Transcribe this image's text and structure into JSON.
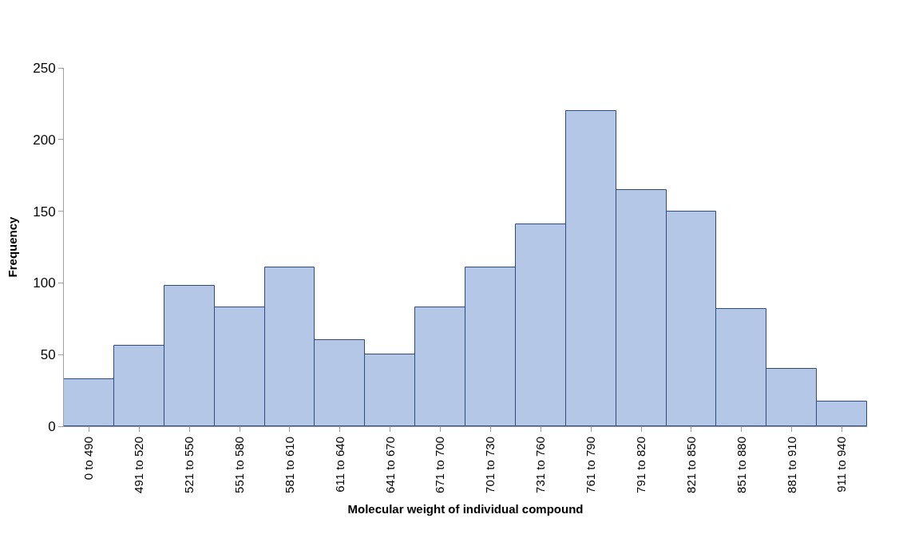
{
  "chart_data": {
    "type": "bar",
    "xlabel": "Molecular weight of individual compound",
    "ylabel": "Frequency",
    "categories": [
      "0 to 490",
      "491 to 520",
      "521 to 550",
      "551 to 580",
      "581 to 610",
      "611 to 640",
      "641 to 670",
      "671 to 700",
      "701 to 730",
      "731 to 760",
      "761 to 790",
      "791 to 820",
      "821 to 850",
      "851 to 880",
      "881 to 910",
      "911 to 940"
    ],
    "values": [
      33,
      56,
      98,
      83,
      111,
      60,
      50,
      83,
      111,
      141,
      220,
      165,
      150,
      82,
      40,
      17
    ],
    "color": "#b4c7e7",
    "ylim": [
      0,
      250
    ],
    "yticks": [
      0,
      50,
      100,
      150,
      200,
      250
    ]
  }
}
